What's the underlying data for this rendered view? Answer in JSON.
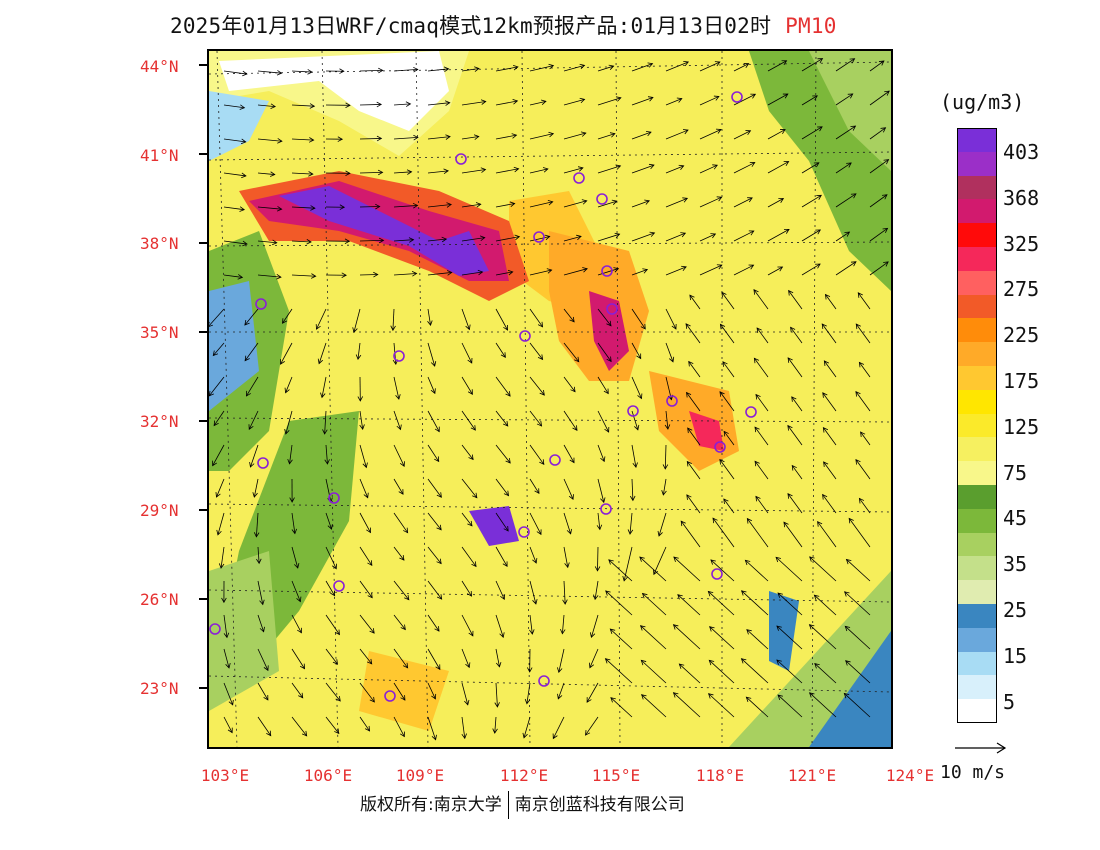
{
  "title": {
    "main": "2025年01月13日WRF/cmaq模式12km预报产品:01月13日02时",
    "pollutant": "PM10"
  },
  "axes": {
    "lat_labels": [
      "44°N",
      "41°N",
      "38°N",
      "35°N",
      "32°N",
      "29°N",
      "26°N",
      "23°N"
    ],
    "lon_labels": [
      "103°E",
      "106°E",
      "109°E",
      "112°E",
      "115°E",
      "118°E",
      "121°E",
      "124°E"
    ]
  },
  "colorbar": {
    "units": "(ug/m3)",
    "labels": [
      "403",
      "368",
      "325",
      "275",
      "225",
      "175",
      "125",
      "75",
      "45",
      "35",
      "25",
      "15",
      "5"
    ],
    "colors": [
      "#7a2fd8",
      "#9b2fc8",
      "#b0305e",
      "#d21a6e",
      "#ff0a0a",
      "#f5285a",
      "#ff6060",
      "#f25a28",
      "#ff8c0a",
      "#ffaa28",
      "#ffc830",
      "#ffe600",
      "#fbea2a",
      "#f6f060",
      "#f8f78a",
      "#5a9e2e",
      "#7cb83a",
      "#a8d060",
      "#c4e08a",
      "#e0ecb0",
      "#3a86c0",
      "#6aa8dc",
      "#a8dcf4",
      "#d8f0fb",
      "#ffffff"
    ]
  },
  "wind_legend": {
    "label": "10 m/s"
  },
  "stations": [
    "o",
    "o",
    "o",
    "o",
    "o",
    "o",
    "o",
    "o",
    "o",
    "o",
    "o",
    "o",
    "o",
    "o",
    "o",
    "o",
    "o",
    "o",
    "o",
    "o",
    "o",
    "o",
    "o",
    "o"
  ],
  "footer": {
    "left": "版权所有:南京大学",
    "right": "南京创蓝科技有限公司"
  },
  "chart_data": {
    "type": "heatmap",
    "title": "2025年01月13日WRF/cmaq模式12km预报产品:01月13日02时 PM10",
    "units": "ug/m3",
    "lat_ticks": [
      44,
      41,
      38,
      35,
      32,
      29,
      26,
      23
    ],
    "lon_ticks": [
      103,
      106,
      109,
      112,
      115,
      118,
      121,
      124
    ],
    "color_levels": [
      5,
      15,
      25,
      35,
      45,
      75,
      125,
      175,
      225,
      275,
      325,
      368,
      403
    ],
    "vector_reference": "10 m/s"
  }
}
